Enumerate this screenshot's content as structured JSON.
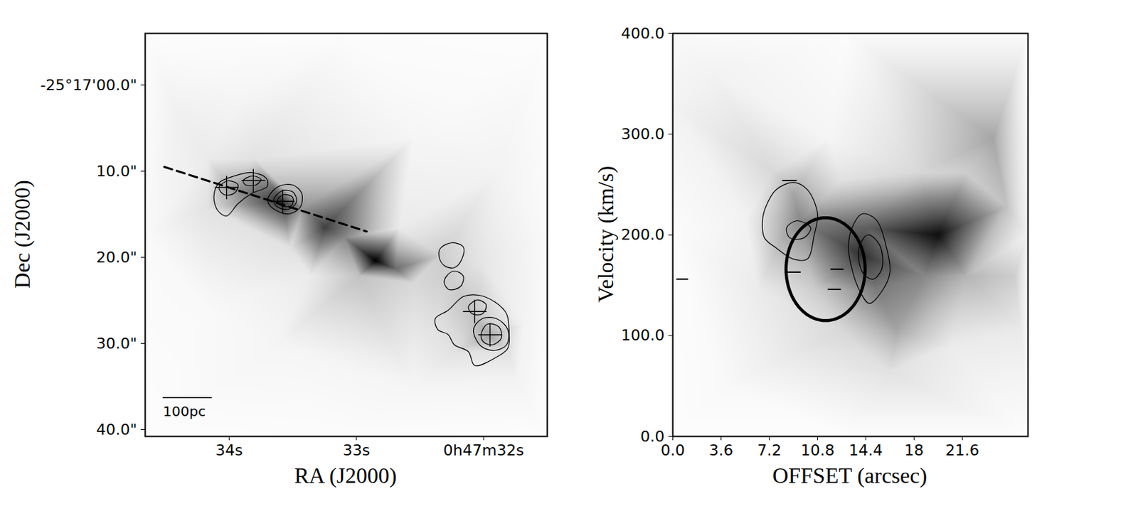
{
  "chart_data": [
    {
      "type": "image",
      "xlabel": "RA (J2000)",
      "ylabel": "Dec (J2000)",
      "xlim": [
        34.66,
        31.5
      ],
      "ylim": [
        40.8,
        -6
      ],
      "xticks": [
        {
          "value": 34,
          "label": "34s"
        },
        {
          "value": 33,
          "label": "33s"
        },
        {
          "value": 32,
          "label": "0h47m32s"
        }
      ],
      "yticks": [
        {
          "value": 0,
          "label": "-25°17'00.0\""
        },
        {
          "value": 10,
          "label": "10.0\""
        },
        {
          "value": 20,
          "label": "20.0\""
        },
        {
          "value": 30,
          "label": "30.0\""
        },
        {
          "value": 40,
          "label": "40.0\""
        }
      ],
      "intensity_range": [
        0,
        1
      ],
      "emission": {
        "x": [
          34.66,
          31.51,
          34.66,
          31.51,
          33.09,
          34.66,
          31.51,
          33.09,
          34.39,
          33.9,
          34.17,
          32.55,
          32.28,
          31.9,
          33.36,
          33.63,
          32.55,
          31.74,
          34.17,
          32.01,
          34.01,
          33.81,
          33.58,
          33.25,
          33.09,
          32.85,
          32.69,
          32.98,
          33.42,
          32.55,
          32.34,
          32.25,
          32.34,
          32.07,
          31.95,
          31.8,
          32.23,
          31.69,
          32.66,
          33.52,
          34.17,
          33.8
        ],
        "y": [
          -6.0,
          -6.0,
          40.8,
          40.8,
          -6.0,
          17.36,
          17.36,
          40.8,
          3.76,
          1.36,
          8.56,
          6.16,
          2.96,
          10.16,
          22.16,
          30.16,
          34.96,
          34.16,
          26.16,
          20.56,
          11.76,
          11.12,
          13.52,
          16.56,
          17.76,
          20.4,
          21.36,
          22.16,
          14.16,
          22.96,
          19.76,
          22.96,
          25.36,
          26.96,
          29.2,
          30.96,
          30.96,
          27.76,
          16.56,
          18.96,
          14.16,
          8.56
        ],
        "values": [
          0.02,
          0.02,
          0.02,
          0.02,
          0.03,
          0.05,
          0.05,
          0.03,
          0.12,
          0.08,
          0.15,
          0.08,
          0.05,
          0.1,
          0.15,
          0.08,
          0.08,
          0.1,
          0.05,
          0.18,
          0.45,
          0.5,
          0.85,
          0.8,
          0.55,
          1.0,
          0.65,
          0.35,
          0.5,
          0.25,
          0.3,
          0.3,
          0.25,
          0.35,
          0.45,
          0.2,
          0.2,
          0.1,
          0.15,
          0.2,
          0.2,
          0.2
        ]
      },
      "contours": [
        [
          [
            34.12,
            12.96
          ],
          [
            34.08,
            11.36
          ],
          [
            33.96,
            10.56
          ],
          [
            33.82,
            10.16
          ],
          [
            33.71,
            10.8
          ],
          [
            33.7,
            11.76
          ],
          [
            33.82,
            12.56
          ],
          [
            33.93,
            13.76
          ],
          [
            34.02,
            15.2
          ],
          [
            34.09,
            14.56
          ]
        ],
        [
          [
            34.08,
            11.92
          ],
          [
            34.01,
            11.12
          ],
          [
            33.93,
            11.6
          ],
          [
            33.96,
            12.56
          ],
          [
            34.04,
            12.72
          ]
        ],
        [
          [
            33.89,
            11.12
          ],
          [
            33.82,
            10.56
          ],
          [
            33.75,
            10.96
          ],
          [
            33.79,
            11.6
          ],
          [
            33.87,
            11.6
          ]
        ],
        [
          [
            33.69,
            12.96
          ],
          [
            33.61,
            11.76
          ],
          [
            33.5,
            11.6
          ],
          [
            33.43,
            12.56
          ],
          [
            33.44,
            14.16
          ],
          [
            33.53,
            14.96
          ],
          [
            33.63,
            14.56
          ],
          [
            33.69,
            13.76
          ]
        ],
        [
          [
            33.65,
            13.36
          ],
          [
            33.59,
            12.32
          ],
          [
            33.5,
            12.4
          ],
          [
            33.47,
            13.52
          ],
          [
            33.53,
            14.4
          ],
          [
            33.62,
            14.16
          ]
        ],
        [
          [
            33.62,
            13.36
          ],
          [
            33.57,
            12.72
          ],
          [
            33.5,
            13.04
          ],
          [
            33.51,
            14.0
          ],
          [
            33.59,
            14.0
          ]
        ],
        [
          [
            32.34,
            18.96
          ],
          [
            32.25,
            18.32
          ],
          [
            32.16,
            18.8
          ],
          [
            32.17,
            20.16
          ],
          [
            32.23,
            21.2
          ],
          [
            32.31,
            20.96
          ],
          [
            32.35,
            19.92
          ]
        ],
        [
          [
            32.29,
            22.16
          ],
          [
            32.23,
            21.6
          ],
          [
            32.16,
            22.16
          ],
          [
            32.18,
            23.36
          ],
          [
            32.27,
            23.76
          ],
          [
            32.31,
            22.96
          ]
        ],
        [
          [
            32.38,
            27.12
          ],
          [
            32.28,
            26.16
          ],
          [
            32.16,
            24.56
          ],
          [
            32.04,
            24.4
          ],
          [
            31.91,
            25.2
          ],
          [
            31.82,
            26.56
          ],
          [
            31.8,
            28.56
          ],
          [
            31.81,
            30.56
          ],
          [
            31.9,
            31.6
          ],
          [
            32.07,
            32.56
          ],
          [
            32.12,
            30.96
          ],
          [
            32.23,
            30.16
          ],
          [
            32.28,
            28.96
          ],
          [
            32.36,
            28.4
          ]
        ],
        [
          [
            32.08,
            28.4
          ],
          [
            32.01,
            27.12
          ],
          [
            31.9,
            27.12
          ],
          [
            31.81,
            28.4
          ],
          [
            31.82,
            30.16
          ],
          [
            31.91,
            30.8
          ],
          [
            32.02,
            30.32
          ]
        ],
        [
          [
            32.02,
            28.96
          ],
          [
            31.97,
            27.76
          ],
          [
            31.88,
            28.08
          ],
          [
            31.86,
            29.36
          ],
          [
            31.93,
            30.16
          ],
          [
            32.0,
            29.84
          ]
        ],
        [
          [
            32.12,
            25.76
          ],
          [
            32.05,
            24.96
          ],
          [
            31.98,
            25.52
          ],
          [
            32.01,
            26.56
          ],
          [
            32.09,
            26.56
          ]
        ]
      ],
      "markers": {
        "marker": "plus",
        "x": [
          34.02,
          33.81,
          33.58,
          32.07,
          31.95
        ],
        "y": [
          11.9,
          11.1,
          13.5,
          26.3,
          29.0
        ]
      },
      "lines": [
        {
          "line_style": "dashed",
          "x": [
            34.51,
            32.92
          ],
          "y": [
            9.5,
            17.0
          ]
        }
      ],
      "scalebar": {
        "label": "100pc",
        "x": [
          34.52,
          34.14
        ],
        "y": 36.3
      }
    },
    {
      "type": "image",
      "xlabel": "OFFSET (arcsec)",
      "ylabel": "Velocity (km/s)",
      "xlim": [
        0,
        26.5
      ],
      "ylim": [
        0,
        400
      ],
      "xticks": [
        {
          "value": 0,
          "label": "0.0"
        },
        3.6,
        7.2,
        10.8,
        14.4,
        18.0,
        21.6
      ],
      "yticks": [
        {
          "value": 0,
          "label": "0.0"
        },
        {
          "value": 100,
          "label": "100.0"
        },
        {
          "value": 200,
          "label": "200.0"
        },
        {
          "value": 300,
          "label": "300.0"
        },
        {
          "value": 400,
          "label": "400.0"
        }
      ],
      "intensity_range": [
        0,
        1
      ],
      "emission": {
        "x": [
          0,
          26.5,
          0,
          26.5,
          0,
          3,
          13,
          0,
          26.5,
          13,
          9.5,
          9.0,
          8.0,
          10.5,
          14.1,
          14.4,
          15.2,
          16.7,
          16.2,
          19.8,
          18.8,
          21.9,
          23.9,
          24.9,
          25.5,
          21.9,
          18.3,
          12.6,
          6.4,
          7.5,
          5.4,
          20.8,
          12.6,
          26.0,
          11.6,
          3.9
        ],
        "y": [
          0,
          0,
          400,
          400,
          330,
          360,
          400,
          200,
          200,
          0,
          214,
          241,
          193,
          146,
          180,
          207,
          146,
          105,
          64,
          200,
          159,
          159,
          296,
          228,
          159,
          262,
          262,
          255,
          146,
          262,
          214,
          91,
          105,
          105,
          296,
          50
        ],
        "values": [
          0.02,
          0.02,
          0.05,
          0.03,
          0.1,
          0.1,
          0.03,
          0.03,
          0.1,
          0.02,
          0.55,
          0.45,
          0.4,
          0.3,
          0.85,
          0.7,
          0.6,
          0.45,
          0.2,
          0.95,
          0.55,
          0.4,
          0.45,
          0.35,
          0.3,
          0.3,
          0.25,
          0.2,
          0.15,
          0.25,
          0.1,
          0.15,
          0.25,
          0.15,
          0.08,
          0.05
        ]
      },
      "contours": [
        [
          [
            6.69,
            214
          ],
          [
            6.94,
            228
          ],
          [
            7.72,
            245
          ],
          [
            9.0,
            252
          ],
          [
            10.03,
            245
          ],
          [
            10.8,
            221
          ],
          [
            10.55,
            200
          ],
          [
            10.03,
            176
          ],
          [
            9.0,
            176
          ],
          [
            7.72,
            187
          ],
          [
            6.84,
            197
          ]
        ],
        [
          [
            8.49,
            207
          ],
          [
            9.26,
            214
          ],
          [
            10.29,
            207
          ],
          [
            9.77,
            197
          ],
          [
            8.74,
            197
          ]
        ],
        [
          [
            13.37,
            207
          ],
          [
            14.15,
            221
          ],
          [
            15.17,
            215
          ],
          [
            15.95,
            187
          ],
          [
            16.2,
            163
          ],
          [
            15.69,
            146
          ],
          [
            14.66,
            132
          ],
          [
            13.89,
            146
          ],
          [
            13.37,
            166
          ],
          [
            13.11,
            187
          ]
        ],
        [
          [
            13.89,
            187
          ],
          [
            14.56,
            200
          ],
          [
            15.43,
            190
          ],
          [
            15.59,
            166
          ],
          [
            14.92,
            156
          ],
          [
            14.15,
            163
          ]
        ]
      ],
      "lines": [
        {
          "line_style": "solid",
          "x": [
            8.2,
            9.2
          ],
          "y": [
            254,
            254
          ]
        },
        {
          "line_style": "solid",
          "x": [
            8.4,
            9.5
          ],
          "y": [
            163,
            163
          ]
        },
        {
          "line_style": "solid",
          "x": [
            11.8,
            12.7
          ],
          "y": [
            166,
            166
          ]
        },
        {
          "line_style": "solid",
          "x": [
            11.6,
            12.5
          ],
          "y": [
            146,
            146
          ]
        },
        {
          "line_style": "solid",
          "x": [
            0.3,
            1.1
          ],
          "y": [
            156,
            156
          ]
        }
      ],
      "ellipse": {
        "center": [
          11.4,
          166
        ],
        "radii": [
          2.95,
          51
        ]
      }
    }
  ]
}
